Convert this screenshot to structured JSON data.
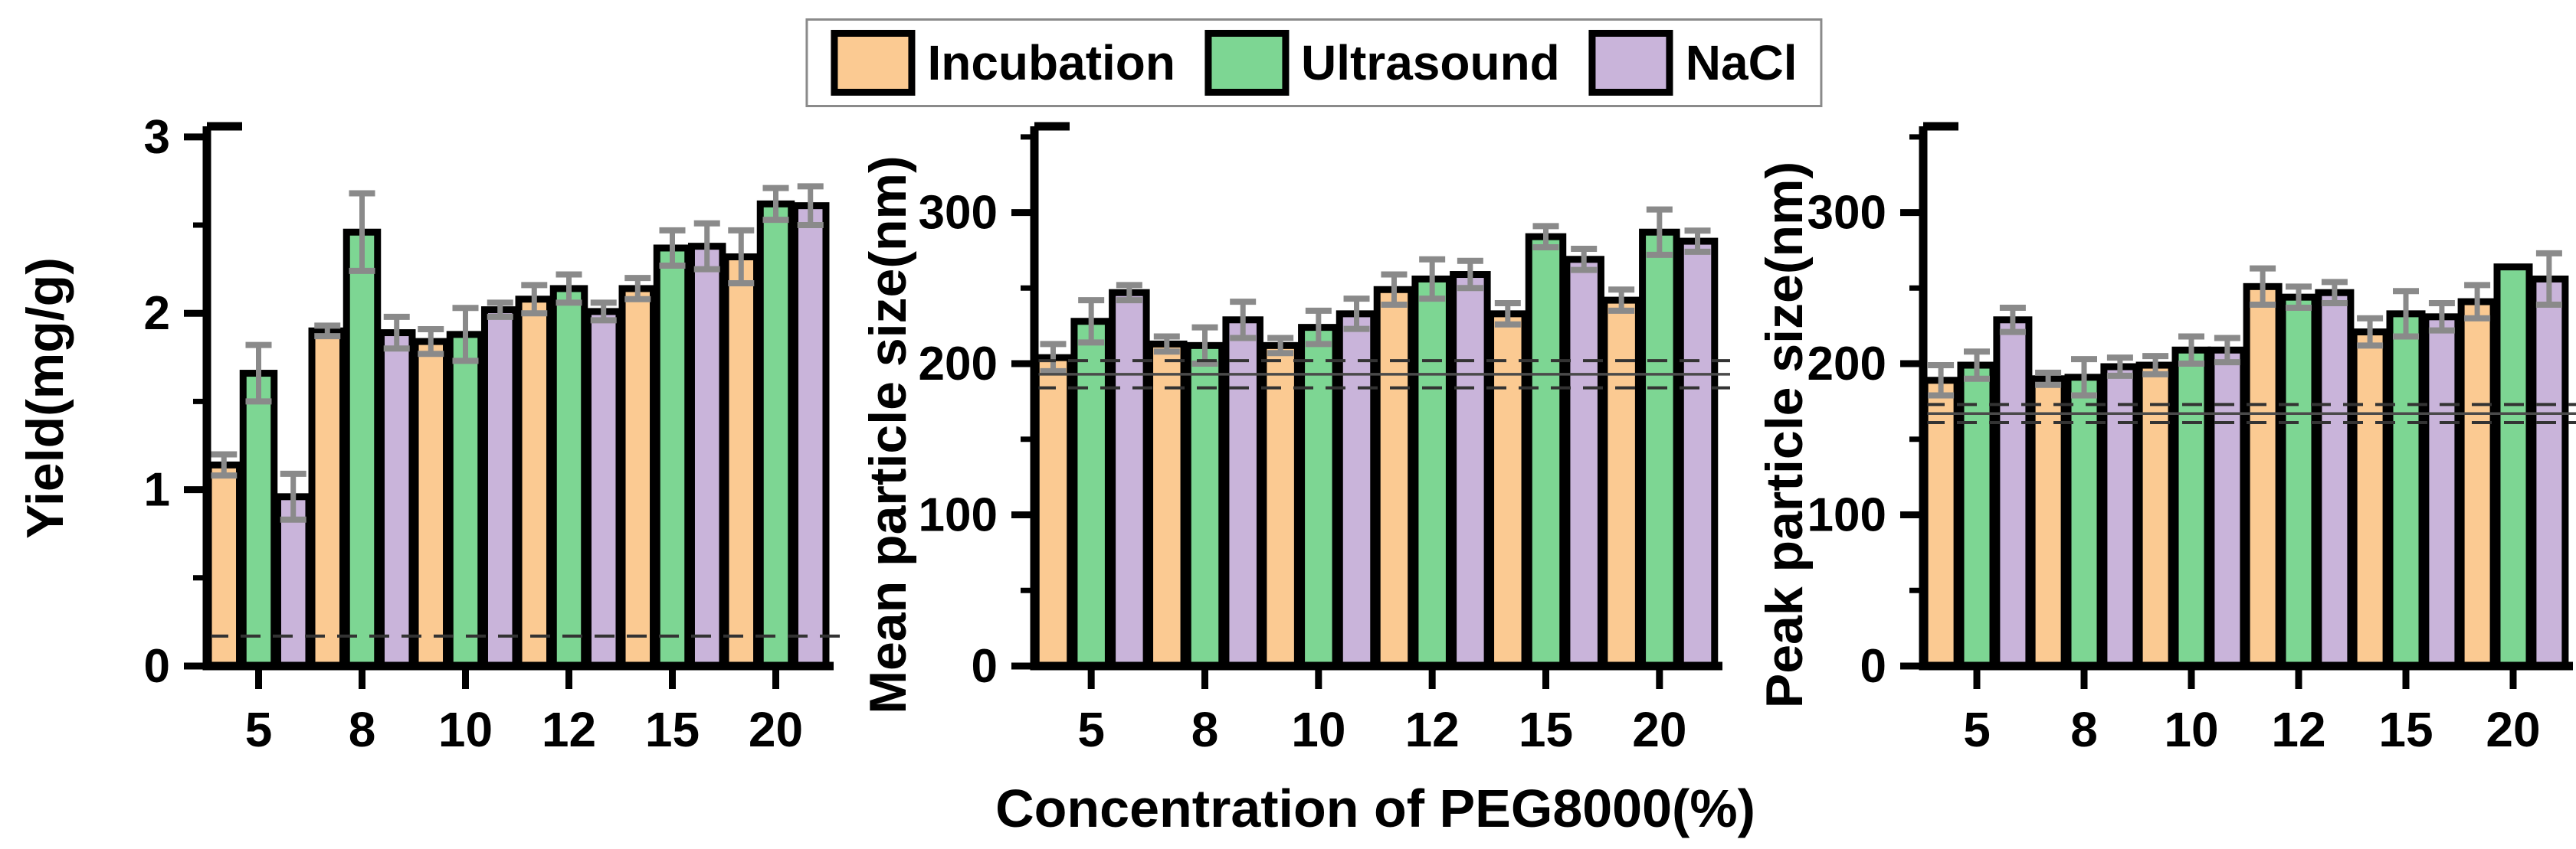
{
  "legend": {
    "position": "top-center",
    "items": [
      {
        "label": "Incubation",
        "color": "#FBCA92"
      },
      {
        "label": "Ultrasound",
        "color": "#7DD693"
      },
      {
        "label": "NaCl",
        "color": "#C9B4DA"
      }
    ]
  },
  "x_axis": {
    "title": "Concentration of PEG8000(%)",
    "categories": [
      "5",
      "8",
      "10",
      "12",
      "15",
      "20"
    ]
  },
  "style": {
    "bar_border_color": "#000000",
    "axis_color": "#000000",
    "error_bar_color": "#8a8a8a",
    "ref_solid_color": "#4a4a4a",
    "ref_dashed_color": "#333333",
    "background": "#ffffff"
  },
  "chart_data": [
    {
      "type": "bar",
      "ylabel": "Yield(mg/g)",
      "ylim": [
        0,
        3
      ],
      "yticks": [
        0,
        1,
        2,
        3
      ],
      "yticks_minor": [
        0.5,
        1.5,
        2.5
      ],
      "grid": false,
      "categories": [
        "5",
        "8",
        "10",
        "12",
        "15",
        "20"
      ],
      "series": [
        {
          "name": "Incubation",
          "values": [
            1.14,
            1.9,
            1.84,
            2.08,
            2.14,
            2.32
          ],
          "errors": [
            0.06,
            0.03,
            0.07,
            0.08,
            0.06,
            0.15
          ]
        },
        {
          "name": "Ultrasound",
          "values": [
            1.66,
            2.46,
            1.88,
            2.14,
            2.37,
            2.62
          ],
          "errors": [
            0.16,
            0.22,
            0.15,
            0.08,
            0.1,
            0.09
          ]
        },
        {
          "name": "NaCl",
          "values": [
            0.96,
            1.89,
            2.02,
            2.01,
            2.38,
            2.61
          ],
          "errors": [
            0.13,
            0.09,
            0.04,
            0.05,
            0.13,
            0.11
          ]
        }
      ],
      "ref_lines": {
        "solid": null,
        "dashed": [
          0.17
        ]
      }
    },
    {
      "type": "bar",
      "ylabel": "Mean particle size(nm)",
      "ylim": [
        0,
        350
      ],
      "yticks": [
        0,
        100,
        200,
        300
      ],
      "yticks_minor": [
        50,
        150,
        250,
        350
      ],
      "grid": false,
      "categories": [
        "5",
        "8",
        "10",
        "12",
        "15",
        "20"
      ],
      "series": [
        {
          "name": "Incubation",
          "values": [
            204,
            213,
            212,
            249,
            233,
            242
          ],
          "errors": [
            9,
            5,
            5,
            10,
            7,
            7
          ]
        },
        {
          "name": "Ultrasound",
          "values": [
            228,
            212,
            224,
            256,
            284,
            287
          ],
          "errors": [
            14,
            12,
            11,
            13,
            7,
            15
          ]
        },
        {
          "name": "NaCl",
          "values": [
            247,
            229,
            233,
            259,
            269,
            281
          ],
          "errors": [
            5,
            12,
            10,
            9,
            7,
            7
          ]
        }
      ],
      "ref_lines": {
        "solid": 193,
        "dashed": [
          202,
          184
        ]
      }
    },
    {
      "type": "bar",
      "ylabel": "Peak particle size(nm)",
      "ylim": [
        0,
        350
      ],
      "yticks": [
        0,
        100,
        200,
        300
      ],
      "yticks_minor": [
        50,
        150,
        250,
        350
      ],
      "grid": false,
      "categories": [
        "5",
        "8",
        "10",
        "12",
        "15",
        "20"
      ],
      "series": [
        {
          "name": "Incubation",
          "values": [
            189,
            190,
            199,
            251,
            221,
            241
          ],
          "errors": [
            10,
            4,
            6,
            12,
            9,
            11
          ]
        },
        {
          "name": "Ultrasound",
          "values": [
            199,
            191,
            209,
            244,
            233,
            264
          ],
          "errors": [
            9,
            12,
            9,
            7,
            15,
            0
          ]
        },
        {
          "name": "NaCl",
          "values": [
            229,
            198,
            209,
            247,
            231,
            256
          ],
          "errors": [
            8,
            6,
            8,
            7,
            9,
            17
          ]
        }
      ],
      "ref_lines": {
        "solid": 167,
        "dashed": [
          173,
          161
        ]
      }
    }
  ]
}
